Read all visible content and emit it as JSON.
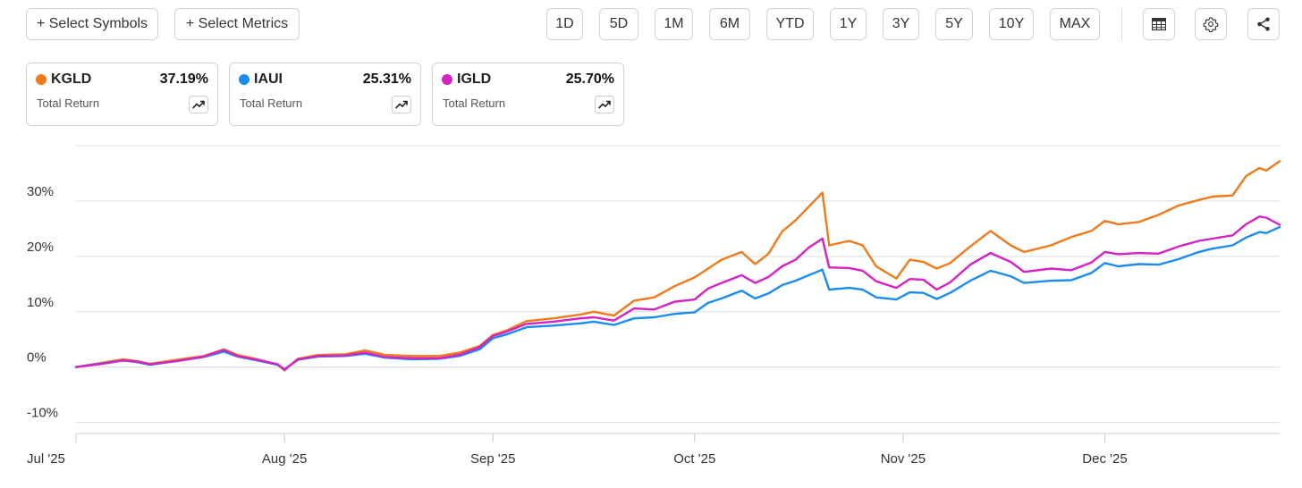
{
  "toolbar": {
    "select_symbols": "+ Select Symbols",
    "select_metrics": "+ Select Metrics",
    "ranges": [
      "1D",
      "5D",
      "1M",
      "6M",
      "YTD",
      "1Y",
      "3Y",
      "5Y",
      "10Y",
      "MAX"
    ],
    "icons": [
      "table-icon",
      "gear-icon",
      "share-icon"
    ]
  },
  "legend": [
    {
      "symbol": "KGLD",
      "value": "37.19%",
      "metric": "Total Return",
      "color": "#f07a1a"
    },
    {
      "symbol": "IAUI",
      "value": "25.31%",
      "metric": "Total Return",
      "color": "#1a8cf0"
    },
    {
      "symbol": "IGLD",
      "value": "25.70%",
      "metric": "Total Return",
      "color": "#d422c4"
    }
  ],
  "chart_data": {
    "type": "line",
    "ylabel_format": "percent",
    "ylim": [
      -12,
      40
    ],
    "yticks": [
      -10,
      0,
      10,
      20,
      30
    ],
    "ytick_labels": [
      "-10%",
      "0%",
      "10%",
      "20%",
      "30%"
    ],
    "x_start": "2025-07-01",
    "x_end": "2025-12-27",
    "xticks": [
      "2025-07-01",
      "2025-08-01",
      "2025-09-01",
      "2025-10-01",
      "2025-11-01",
      "2025-12-01"
    ],
    "xtick_labels": [
      "Jul '25",
      "Aug '25",
      "Sep '25",
      "Oct '25",
      "Nov '25",
      "Dec '25"
    ],
    "grid": true,
    "series": [
      {
        "name": "KGLD",
        "color": "#f07a1a",
        "points": [
          [
            "2025-07-01",
            0
          ],
          [
            "2025-07-05",
            0.8
          ],
          [
            "2025-07-08",
            1.4
          ],
          [
            "2025-07-10",
            1.1
          ],
          [
            "2025-07-12",
            0.6
          ],
          [
            "2025-07-16",
            1.3
          ],
          [
            "2025-07-20",
            2.0
          ],
          [
            "2025-07-23",
            3.2
          ],
          [
            "2025-07-25",
            2.2
          ],
          [
            "2025-07-28",
            1.4
          ],
          [
            "2025-07-31",
            0.4
          ],
          [
            "2025-08-01",
            -0.6
          ],
          [
            "2025-08-03",
            1.5
          ],
          [
            "2025-08-06",
            2.2
          ],
          [
            "2025-08-10",
            2.3
          ],
          [
            "2025-08-13",
            3.0
          ],
          [
            "2025-08-16",
            2.2
          ],
          [
            "2025-08-20",
            2.0
          ],
          [
            "2025-08-24",
            2.0
          ],
          [
            "2025-08-27",
            2.6
          ],
          [
            "2025-08-30",
            3.8
          ],
          [
            "2025-09-01",
            5.8
          ],
          [
            "2025-09-03",
            6.6
          ],
          [
            "2025-09-06",
            8.3
          ],
          [
            "2025-09-10",
            8.8
          ],
          [
            "2025-09-14",
            9.5
          ],
          [
            "2025-09-16",
            10.0
          ],
          [
            "2025-09-19",
            9.3
          ],
          [
            "2025-09-22",
            12.0
          ],
          [
            "2025-09-25",
            12.6
          ],
          [
            "2025-09-28",
            14.6
          ],
          [
            "2025-10-01",
            16.2
          ],
          [
            "2025-10-03",
            17.8
          ],
          [
            "2025-10-05",
            19.4
          ],
          [
            "2025-10-08",
            20.8
          ],
          [
            "2025-10-10",
            18.6
          ],
          [
            "2025-10-12",
            20.5
          ],
          [
            "2025-10-14",
            24.5
          ],
          [
            "2025-10-16",
            26.5
          ],
          [
            "2025-10-18",
            29.0
          ],
          [
            "2025-10-20",
            31.5
          ],
          [
            "2025-10-21",
            22.0
          ],
          [
            "2025-10-24",
            22.8
          ],
          [
            "2025-10-26",
            22.0
          ],
          [
            "2025-10-28",
            18.2
          ],
          [
            "2025-10-31",
            16.0
          ],
          [
            "2025-11-02",
            19.4
          ],
          [
            "2025-11-04",
            19.0
          ],
          [
            "2025-11-06",
            17.8
          ],
          [
            "2025-11-08",
            18.8
          ],
          [
            "2025-11-11",
            21.8
          ],
          [
            "2025-11-14",
            24.6
          ],
          [
            "2025-11-17",
            22.0
          ],
          [
            "2025-11-19",
            20.8
          ],
          [
            "2025-11-23",
            22.0
          ],
          [
            "2025-11-26",
            23.5
          ],
          [
            "2025-11-29",
            24.6
          ],
          [
            "2025-12-01",
            26.4
          ],
          [
            "2025-12-03",
            25.8
          ],
          [
            "2025-12-06",
            26.2
          ],
          [
            "2025-12-09",
            27.5
          ],
          [
            "2025-12-12",
            29.2
          ],
          [
            "2025-12-15",
            30.2
          ],
          [
            "2025-12-17",
            30.8
          ],
          [
            "2025-12-20",
            31.0
          ],
          [
            "2025-12-22",
            34.5
          ],
          [
            "2025-12-24",
            36.0
          ],
          [
            "2025-12-25",
            35.5
          ],
          [
            "2025-12-27",
            37.19
          ]
        ]
      },
      {
        "name": "IAUI",
        "color": "#1a8cf0",
        "points": [
          [
            "2025-07-01",
            0
          ],
          [
            "2025-07-05",
            0.7
          ],
          [
            "2025-07-08",
            1.2
          ],
          [
            "2025-07-10",
            0.9
          ],
          [
            "2025-07-12",
            0.4
          ],
          [
            "2025-07-16",
            1.1
          ],
          [
            "2025-07-20",
            1.8
          ],
          [
            "2025-07-23",
            2.8
          ],
          [
            "2025-07-25",
            1.9
          ],
          [
            "2025-07-28",
            1.2
          ],
          [
            "2025-07-31",
            0.4
          ],
          [
            "2025-08-01",
            -0.4
          ],
          [
            "2025-08-03",
            1.3
          ],
          [
            "2025-08-06",
            1.9
          ],
          [
            "2025-08-10",
            2.0
          ],
          [
            "2025-08-13",
            2.4
          ],
          [
            "2025-08-16",
            1.7
          ],
          [
            "2025-08-20",
            1.4
          ],
          [
            "2025-08-24",
            1.5
          ],
          [
            "2025-08-27",
            2.0
          ],
          [
            "2025-08-30",
            3.2
          ],
          [
            "2025-09-01",
            5.2
          ],
          [
            "2025-09-03",
            5.9
          ],
          [
            "2025-09-06",
            7.2
          ],
          [
            "2025-09-10",
            7.5
          ],
          [
            "2025-09-14",
            7.9
          ],
          [
            "2025-09-16",
            8.2
          ],
          [
            "2025-09-19",
            7.6
          ],
          [
            "2025-09-22",
            8.8
          ],
          [
            "2025-09-25",
            9.0
          ],
          [
            "2025-09-28",
            9.6
          ],
          [
            "2025-10-01",
            9.9
          ],
          [
            "2025-10-03",
            11.6
          ],
          [
            "2025-10-05",
            12.4
          ],
          [
            "2025-10-08",
            13.8
          ],
          [
            "2025-10-10",
            12.4
          ],
          [
            "2025-10-12",
            13.3
          ],
          [
            "2025-10-14",
            14.8
          ],
          [
            "2025-10-16",
            15.6
          ],
          [
            "2025-10-18",
            16.6
          ],
          [
            "2025-10-20",
            17.6
          ],
          [
            "2025-10-21",
            14.0
          ],
          [
            "2025-10-24",
            14.3
          ],
          [
            "2025-10-26",
            14.0
          ],
          [
            "2025-10-28",
            12.6
          ],
          [
            "2025-10-31",
            12.2
          ],
          [
            "2025-11-02",
            13.5
          ],
          [
            "2025-11-04",
            13.4
          ],
          [
            "2025-11-06",
            12.3
          ],
          [
            "2025-11-08",
            13.4
          ],
          [
            "2025-11-11",
            15.6
          ],
          [
            "2025-11-14",
            17.4
          ],
          [
            "2025-11-17",
            16.4
          ],
          [
            "2025-11-19",
            15.2
          ],
          [
            "2025-11-23",
            15.6
          ],
          [
            "2025-11-26",
            15.7
          ],
          [
            "2025-11-29",
            17.0
          ],
          [
            "2025-12-01",
            18.8
          ],
          [
            "2025-12-03",
            18.2
          ],
          [
            "2025-12-06",
            18.6
          ],
          [
            "2025-12-09",
            18.5
          ],
          [
            "2025-12-12",
            19.5
          ],
          [
            "2025-12-15",
            20.8
          ],
          [
            "2025-12-17",
            21.4
          ],
          [
            "2025-12-20",
            22.0
          ],
          [
            "2025-12-22",
            23.4
          ],
          [
            "2025-12-24",
            24.4
          ],
          [
            "2025-12-25",
            24.2
          ],
          [
            "2025-12-27",
            25.31
          ]
        ]
      },
      {
        "name": "IGLD",
        "color": "#d422c4",
        "points": [
          [
            "2025-07-01",
            0
          ],
          [
            "2025-07-05",
            0.6
          ],
          [
            "2025-07-08",
            1.2
          ],
          [
            "2025-07-10",
            1.0
          ],
          [
            "2025-07-12",
            0.5
          ],
          [
            "2025-07-16",
            1.1
          ],
          [
            "2025-07-20",
            1.9
          ],
          [
            "2025-07-23",
            3.1
          ],
          [
            "2025-07-25",
            2.0
          ],
          [
            "2025-07-28",
            1.3
          ],
          [
            "2025-07-31",
            0.5
          ],
          [
            "2025-08-01",
            -0.5
          ],
          [
            "2025-08-03",
            1.4
          ],
          [
            "2025-08-06",
            2.0
          ],
          [
            "2025-08-10",
            2.1
          ],
          [
            "2025-08-13",
            2.6
          ],
          [
            "2025-08-16",
            1.8
          ],
          [
            "2025-08-20",
            1.6
          ],
          [
            "2025-08-24",
            1.6
          ],
          [
            "2025-08-27",
            2.2
          ],
          [
            "2025-08-30",
            3.6
          ],
          [
            "2025-09-01",
            5.6
          ],
          [
            "2025-09-03",
            6.4
          ],
          [
            "2025-09-06",
            7.8
          ],
          [
            "2025-09-10",
            8.2
          ],
          [
            "2025-09-14",
            8.8
          ],
          [
            "2025-09-16",
            9.0
          ],
          [
            "2025-09-19",
            8.4
          ],
          [
            "2025-09-22",
            10.6
          ],
          [
            "2025-09-25",
            10.4
          ],
          [
            "2025-09-28",
            11.8
          ],
          [
            "2025-10-01",
            12.2
          ],
          [
            "2025-10-03",
            14.2
          ],
          [
            "2025-10-05",
            15.2
          ],
          [
            "2025-10-08",
            16.6
          ],
          [
            "2025-10-10",
            15.2
          ],
          [
            "2025-10-12",
            16.3
          ],
          [
            "2025-10-14",
            18.2
          ],
          [
            "2025-10-16",
            19.4
          ],
          [
            "2025-10-18",
            21.6
          ],
          [
            "2025-10-20",
            23.2
          ],
          [
            "2025-10-21",
            18.0
          ],
          [
            "2025-10-24",
            17.9
          ],
          [
            "2025-10-26",
            17.4
          ],
          [
            "2025-10-28",
            15.5
          ],
          [
            "2025-10-31",
            14.3
          ],
          [
            "2025-11-02",
            15.9
          ],
          [
            "2025-11-04",
            15.8
          ],
          [
            "2025-11-06",
            14.0
          ],
          [
            "2025-11-08",
            15.3
          ],
          [
            "2025-11-11",
            18.5
          ],
          [
            "2025-11-14",
            20.6
          ],
          [
            "2025-11-17",
            19.0
          ],
          [
            "2025-11-19",
            17.2
          ],
          [
            "2025-11-23",
            17.8
          ],
          [
            "2025-11-26",
            17.5
          ],
          [
            "2025-11-29",
            18.9
          ],
          [
            "2025-12-01",
            20.8
          ],
          [
            "2025-12-03",
            20.4
          ],
          [
            "2025-12-06",
            20.6
          ],
          [
            "2025-12-09",
            20.5
          ],
          [
            "2025-12-12",
            21.8
          ],
          [
            "2025-12-15",
            22.8
          ],
          [
            "2025-12-17",
            23.2
          ],
          [
            "2025-12-20",
            23.8
          ],
          [
            "2025-12-22",
            25.8
          ],
          [
            "2025-12-24",
            27.2
          ],
          [
            "2025-12-25",
            27.0
          ],
          [
            "2025-12-27",
            25.7
          ]
        ]
      }
    ]
  }
}
